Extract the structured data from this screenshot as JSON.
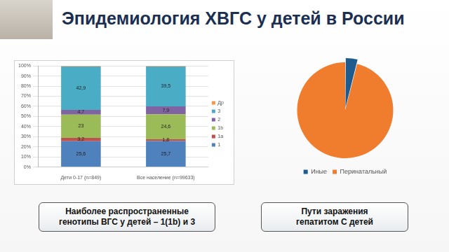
{
  "title": "Эпидемиология ХВГС у детей в России",
  "boxes": [
    {
      "lines": [
        "Наиболее распространенные",
        "генотипы ВГС у детей – 1(1b) и 3"
      ]
    },
    {
      "lines": [
        "Пути заражения",
        "гепатитом С детей"
      ]
    }
  ],
  "chart_data": [
    {
      "type": "bar",
      "stacked": true,
      "data_labels": true,
      "grid": true,
      "legend": "right",
      "categories": [
        "Дети 0-17 (n=849)",
        "Все население (n=99633)"
      ],
      "ylim": [
        0,
        100
      ],
      "yticks": [
        {
          "value": 0,
          "label": "0%"
        },
        {
          "value": 10,
          "label": "10%"
        },
        {
          "value": 20,
          "label": "20%"
        },
        {
          "value": 30,
          "label": "30%"
        },
        {
          "value": 40,
          "label": "40%"
        },
        {
          "value": 50,
          "label": "50%"
        },
        {
          "value": 60,
          "label": "60%"
        },
        {
          "value": 70,
          "label": "70%"
        },
        {
          "value": 80,
          "label": "80%"
        },
        {
          "value": 90,
          "label": "90%"
        },
        {
          "value": 100,
          "label": "100%"
        }
      ],
      "series": [
        {
          "name": "1",
          "color": "#4f81bd",
          "values": [
            25.6,
            25.7
          ],
          "value_labels": [
            "25,6",
            "25,7"
          ]
        },
        {
          "name": "1a",
          "color": "#c0504d",
          "values": [
            3.2,
            1.8
          ],
          "value_labels": [
            "3,2",
            "1,8"
          ]
        },
        {
          "name": "1b",
          "color": "#9bbb59",
          "values": [
            23,
            24.6
          ],
          "value_labels": [
            "23",
            "24,6"
          ]
        },
        {
          "name": "2",
          "color": "#8064a2",
          "values": [
            4.7,
            7.9
          ],
          "value_labels": [
            "4,7",
            "7,9"
          ]
        },
        {
          "name": "3",
          "color": "#4bacc6",
          "values": [
            42.9,
            39.5
          ],
          "value_labels": [
            "42,9",
            "39,5"
          ]
        },
        {
          "name": "Др",
          "color": "#f79646",
          "values": [
            0.6,
            0.5
          ],
          "value_labels": [
            null,
            null
          ]
        }
      ]
    },
    {
      "type": "pie",
      "legend": "bottom",
      "categories": [
        "Иные",
        "Перинатальный"
      ],
      "values": [
        4,
        96
      ],
      "colors": [
        "#1f5b8c",
        "#f07c2d"
      ]
    }
  ]
}
